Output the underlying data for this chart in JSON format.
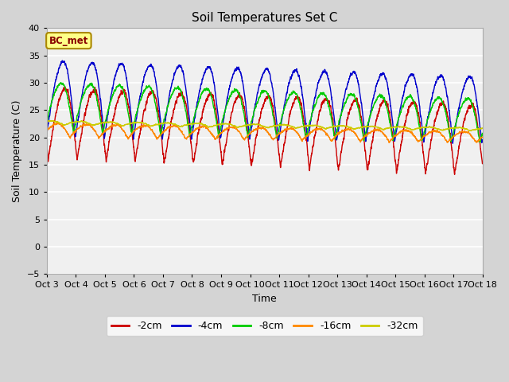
{
  "title": "Soil Temperatures Set C",
  "xlabel": "Time",
  "ylabel": "Soil Temperature (C)",
  "ylim": [
    -5,
    40
  ],
  "annotation": "BC_met",
  "legend_labels": [
    "-2cm",
    "-4cm",
    "-8cm",
    "-16cm",
    "-32cm"
  ],
  "legend_colors": [
    "#cc0000",
    "#0000cc",
    "#00cc00",
    "#ff8800",
    "#cccc00"
  ],
  "xtick_labels": [
    "Oct 3",
    "Oct 4",
    "Oct 5",
    "Oct 6",
    "Oct 7",
    "Oct 8",
    "Oct 9",
    "Oct 10",
    "Oct 11",
    "Oct 12",
    "Oct 13",
    "Oct 14",
    "Oct 15",
    "Oct 16",
    "Oct 17",
    "Oct 18"
  ],
  "background_color": "#f0f0f0",
  "plot_bg_color": "#f0f0f0",
  "grid_color": "#ffffff",
  "n_days": 15
}
